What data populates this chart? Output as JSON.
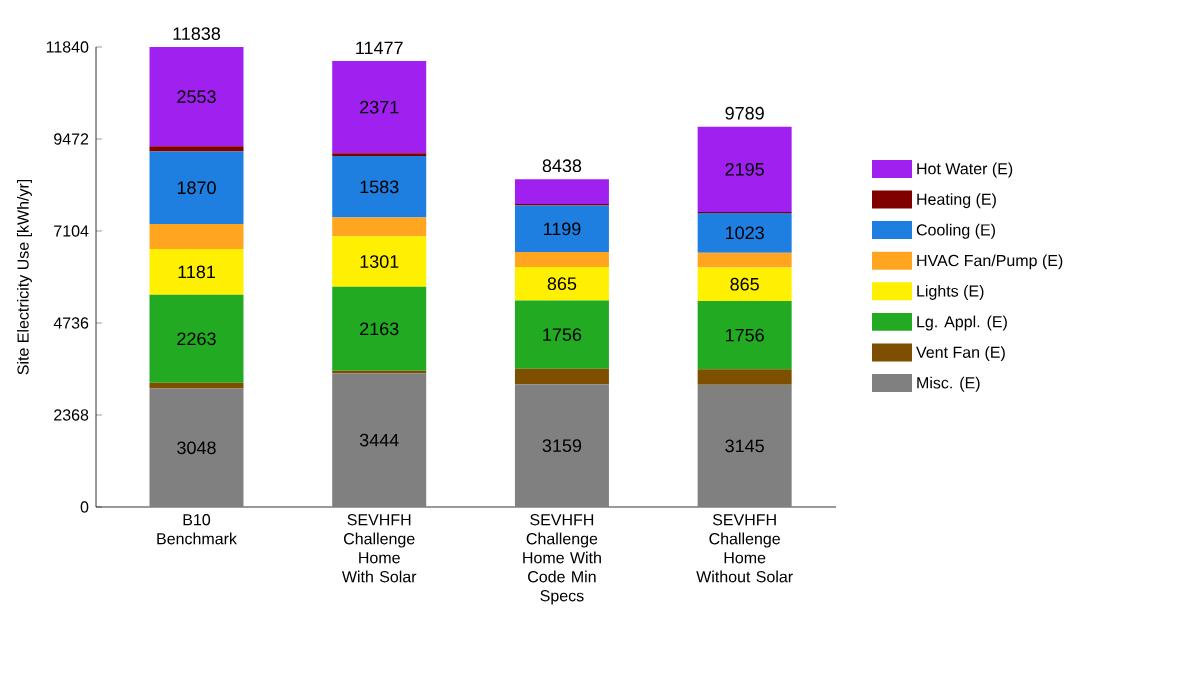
{
  "chart_data": {
    "type": "bar",
    "stacked": true,
    "ylabel": "Site Electricity Use [kWh/yr]",
    "categories": [
      "B10 Benchmark",
      "SEVHFH Challenge Home With Solar",
      "SEVHFH Challenge Home With Code Min Specs",
      "SEVHFH Challenge Home Without Solar"
    ],
    "ylim": [
      0,
      11840
    ],
    "yticks": [
      0,
      2368,
      4736,
      7104,
      9472,
      11840
    ],
    "legend": "right",
    "series": [
      {
        "name": "Misc. (E)",
        "color": "#808080",
        "values": [
          3048,
          3444,
          3159,
          3145
        ],
        "value_labels": [
          "3048",
          "3444",
          "3159",
          "3145"
        ]
      },
      {
        "name": "Vent Fan (E)",
        "color": "#7f4f00",
        "values": [
          150,
          60,
          400,
          400
        ],
        "value_labels": [
          null,
          null,
          null,
          null
        ]
      },
      {
        "name": "Lg. Appl. (E)",
        "color": "#22aa22",
        "values": [
          2263,
          2163,
          1756,
          1756
        ],
        "value_labels": [
          "2263",
          "2163",
          "1756",
          "1756"
        ]
      },
      {
        "name": "Lights (E)",
        "color": "#ffef00",
        "values": [
          1181,
          1301,
          865,
          865
        ],
        "value_labels": [
          "1181",
          "1301",
          "865",
          "865"
        ]
      },
      {
        "name": "HVAC Fan/Pump (E)",
        "color": "#ffa520",
        "values": [
          640,
          480,
          380,
          380
        ],
        "value_labels": [
          null,
          null,
          null,
          null
        ]
      },
      {
        "name": "Cooling (E)",
        "color": "#1e7fe0",
        "values": [
          1870,
          1583,
          1199,
          1023
        ],
        "value_labels": [
          "1870",
          "1583",
          "1199",
          "1023"
        ]
      },
      {
        "name": "Heating (E)",
        "color": "#800000",
        "values": [
          133,
          75,
          39,
          25
        ],
        "value_labels": [
          null,
          null,
          null,
          null
        ]
      },
      {
        "name": "Hot Water (E)",
        "color": "#a020f0",
        "values": [
          2553,
          2371,
          640,
          2195
        ],
        "value_labels": [
          "2553",
          "2371",
          null,
          "2195"
        ]
      }
    ],
    "totals": [
      "11838",
      "11477",
      "8438",
      "9789"
    ]
  }
}
